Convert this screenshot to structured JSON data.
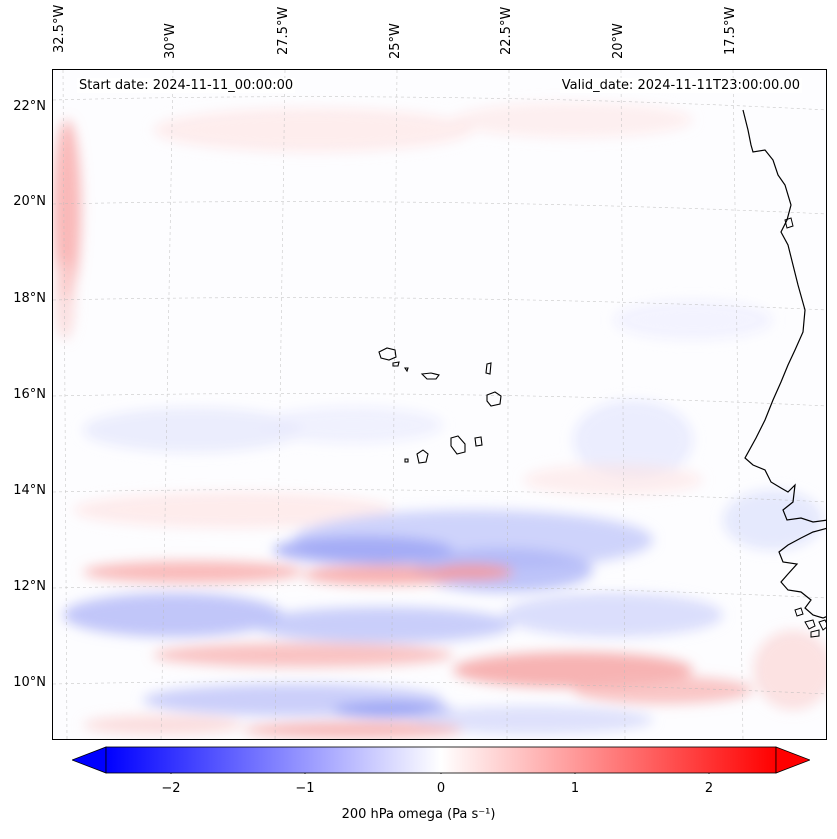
{
  "map": {
    "longitude_labels": [
      "32.5°W",
      "30°W",
      "27.5°W",
      "25°W",
      "22.5°W",
      "20°W",
      "17.5°W"
    ],
    "latitude_labels": [
      "22°N",
      "20°N",
      "18°N",
      "16°N",
      "14°N",
      "12°N",
      "10°N"
    ],
    "start_date_text": "Start date: 2024-11-11_00:00:00",
    "valid_date_text": "Valid_date: 2024-11-11T23:00:00.00",
    "field": "200 hPa omega",
    "colormap": "bwr",
    "gridlines": true,
    "coastline_color": "#000000"
  },
  "colorbar": {
    "label": "200 hPa omega (Pa s⁻¹)",
    "ticks": [
      "−2",
      "−1",
      "0",
      "1",
      "2"
    ],
    "tick_values": [
      -2,
      -1,
      0,
      1,
      2
    ],
    "range": [
      -2.7,
      2.7
    ],
    "extend": "both",
    "color_min": "#0000ff",
    "color_mid": "#ffffff",
    "color_max": "#ff0000"
  }
}
